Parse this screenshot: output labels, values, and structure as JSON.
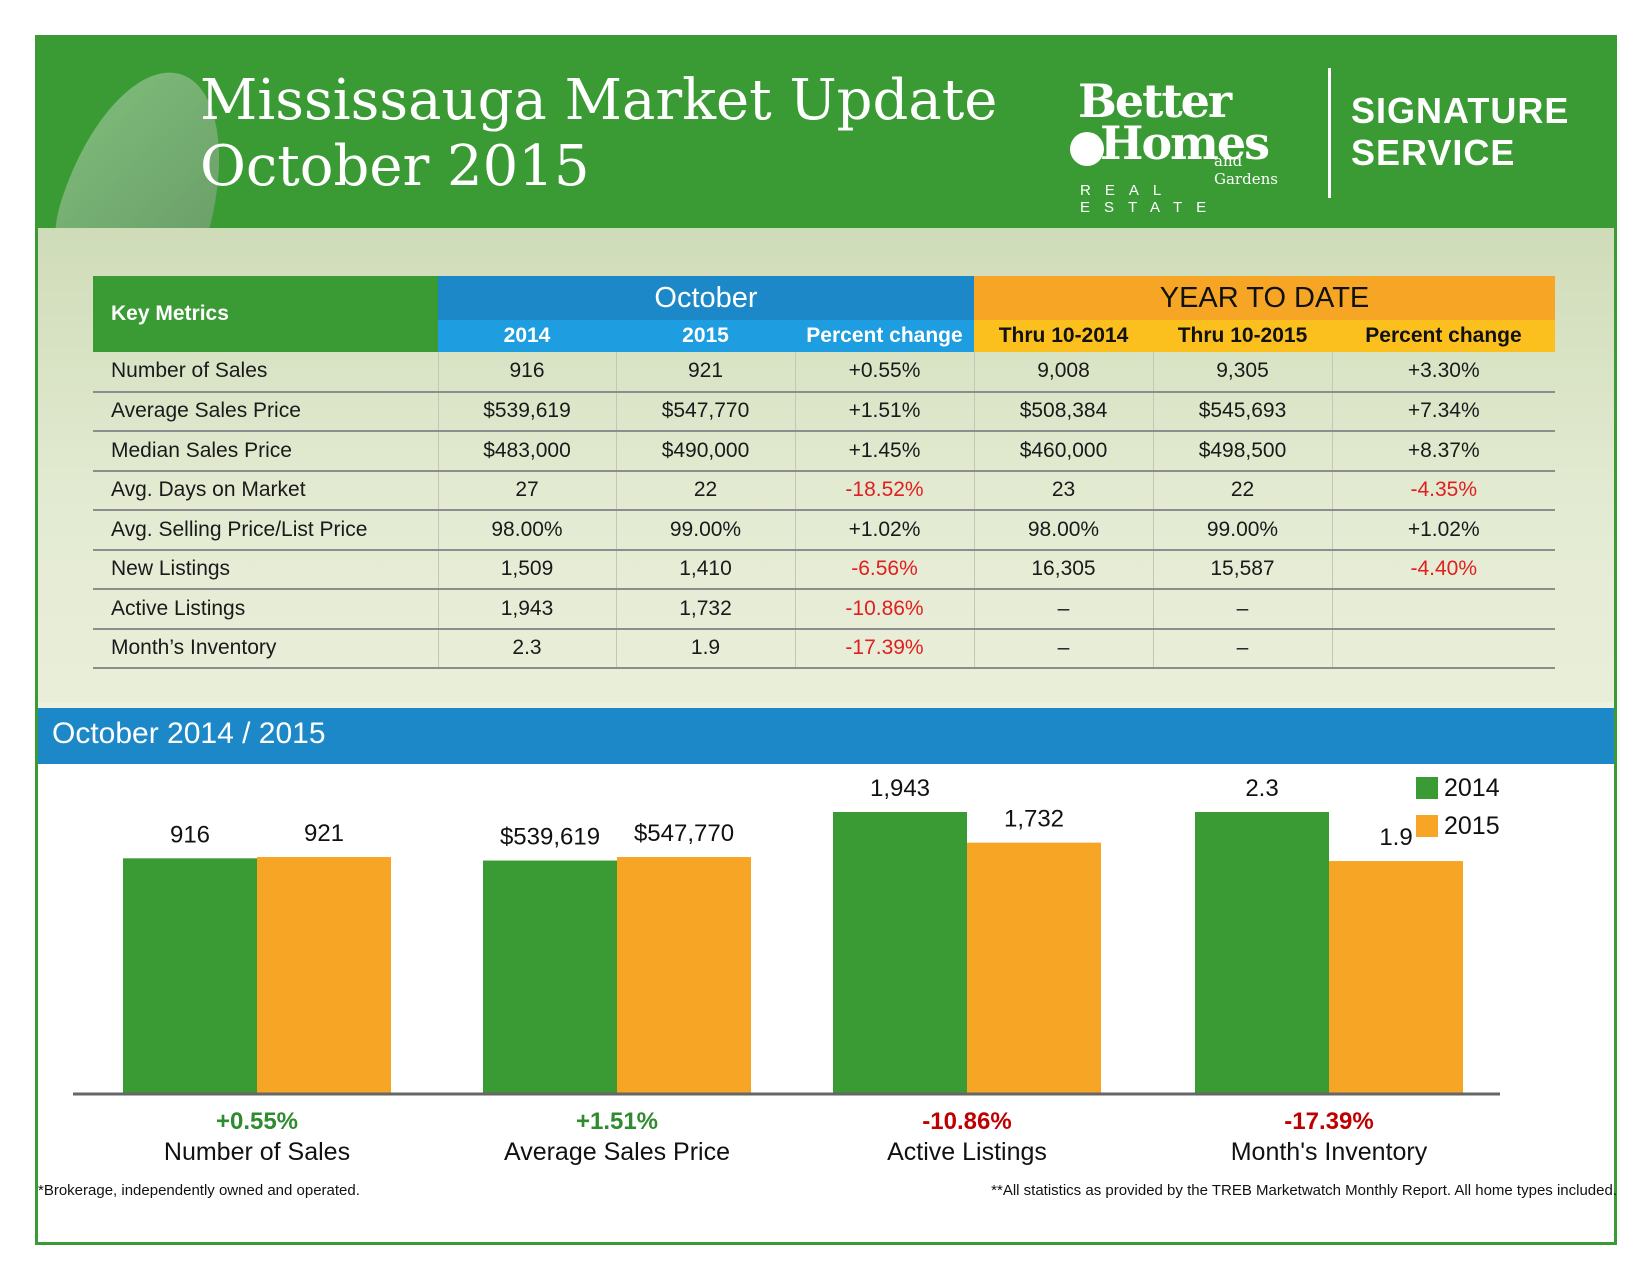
{
  "header": {
    "title_line1": "Mississauga Market Update",
    "title_line2": "October 2015",
    "logo_line1": "Better",
    "logo_line2": "Homes",
    "logo_line3": "and Gardens",
    "logo_line4": "REAL ESTATE",
    "service_line1": "SIGNATURE",
    "service_line2": "SERVICE"
  },
  "table": {
    "key_metrics_label": "Key Metrics",
    "october_label": "October",
    "ytd_label": "YEAR TO DATE",
    "subheaders": [
      "2014",
      "2015",
      "Percent change",
      "Thru 10-2014",
      "Thru 10-2015",
      "Percent change"
    ],
    "rows": [
      {
        "metric": "Number of Sales",
        "cells": [
          "916",
          "921",
          "+0.55%",
          "9,008",
          "9,305",
          "+3.30%"
        ]
      },
      {
        "metric": "Average Sales Price",
        "cells": [
          "$539,619",
          "$547,770",
          "+1.51%",
          "$508,384",
          "$545,693",
          "+7.34%"
        ]
      },
      {
        "metric": "Median Sales Price",
        "cells": [
          "$483,000",
          "$490,000",
          "+1.45%",
          "$460,000",
          "$498,500",
          "+8.37%"
        ]
      },
      {
        "metric": "Avg. Days on Market",
        "cells": [
          "27",
          "22",
          "-18.52%",
          "23",
          "22",
          "-4.35%"
        ]
      },
      {
        "metric": "Avg. Selling Price/List Price",
        "cells": [
          "98.00%",
          "99.00%",
          "+1.02%",
          "98.00%",
          "99.00%",
          "+1.02%"
        ]
      },
      {
        "metric": "New Listings",
        "cells": [
          "1,509",
          "1,410",
          "-6.56%",
          "16,305",
          "15,587",
          "-4.40%"
        ]
      },
      {
        "metric": "Active Listings",
        "cells": [
          "1,943",
          "1,732",
          "-10.86%",
          "–",
          "–",
          ""
        ]
      },
      {
        "metric": "Month’s Inventory",
        "cells": [
          "2.3",
          "1.9",
          "-17.39%",
          "–",
          "–",
          ""
        ]
      }
    ]
  },
  "chart_section": {
    "title": "October 2014 / 2015"
  },
  "chart_data": {
    "type": "bar",
    "categories": [
      "Number of Sales",
      "Average Sales Price",
      "Active Listings",
      "Month's Inventory"
    ],
    "series": [
      {
        "name": "2014",
        "values": [
          916,
          539619,
          1943,
          2.3
        ],
        "labels": [
          "916",
          "$539,619",
          "1,943",
          "2.3"
        ]
      },
      {
        "name": "2015",
        "values": [
          921,
          547770,
          1732,
          1.9
        ],
        "labels": [
          "921",
          "$547,770",
          "1,732",
          "1.9"
        ]
      }
    ],
    "changes": [
      "+0.55%",
      "+1.51%",
      "-10.86%",
      "-17.39%"
    ],
    "note": "each category group scaled independently",
    "legend": "top-right"
  },
  "colors": {
    "green": "#3a9a34",
    "orange": "#f6a624",
    "blue": "#1c88c7",
    "negative": "#c00000",
    "positive": "#2e8b2e"
  },
  "footer": {
    "left": "*Brokerage, independently owned and operated.",
    "right": "**All statistics as provided by the TREB  Marketwatch Monthly Report. All home types included."
  }
}
